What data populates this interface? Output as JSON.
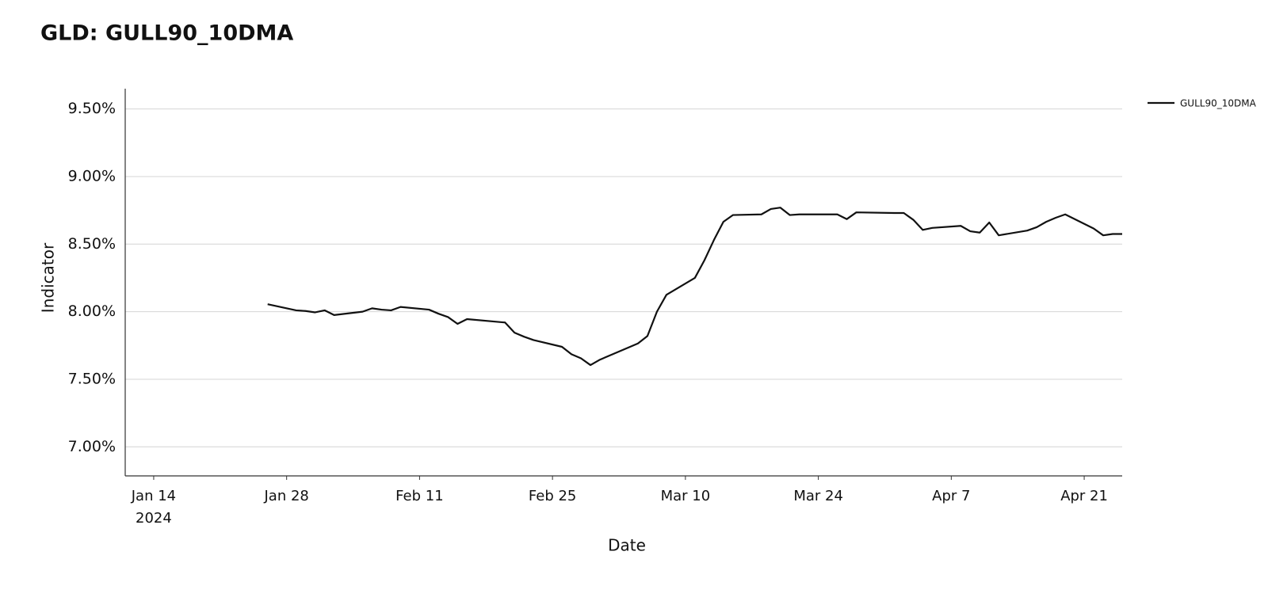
{
  "chart_data": {
    "type": "line",
    "title": "GLD: GULL90_10DMA",
    "x_label": "Date",
    "y_label": "Indicator",
    "x_year_label": "2024",
    "x": [
      "2024-01-26",
      "2024-01-29",
      "2024-01-30",
      "2024-01-31",
      "2024-02-01",
      "2024-02-02",
      "2024-02-05",
      "2024-02-06",
      "2024-02-07",
      "2024-02-08",
      "2024-02-09",
      "2024-02-12",
      "2024-02-13",
      "2024-02-14",
      "2024-02-15",
      "2024-02-16",
      "2024-02-20",
      "2024-02-21",
      "2024-02-22",
      "2024-02-23",
      "2024-02-26",
      "2024-02-27",
      "2024-02-28",
      "2024-02-29",
      "2024-03-01",
      "2024-03-04",
      "2024-03-05",
      "2024-03-06",
      "2024-03-07",
      "2024-03-08",
      "2024-03-11",
      "2024-03-12",
      "2024-03-13",
      "2024-03-14",
      "2024-03-15",
      "2024-03-18",
      "2024-03-19",
      "2024-03-20",
      "2024-03-21",
      "2024-03-22",
      "2024-03-25",
      "2024-03-26",
      "2024-03-27",
      "2024-03-28",
      "2024-04-01",
      "2024-04-02",
      "2024-04-03",
      "2024-04-04",
      "2024-04-05",
      "2024-04-08",
      "2024-04-09",
      "2024-04-10",
      "2024-04-11",
      "2024-04-12",
      "2024-04-15",
      "2024-04-16",
      "2024-04-17",
      "2024-04-18",
      "2024-04-19",
      "2024-04-22",
      "2024-04-23",
      "2024-04-24",
      "2024-04-25"
    ],
    "series": [
      {
        "name": "GULL90_10DMA",
        "color": "#111111",
        "values": [
          8.055,
          8.01,
          8.005,
          7.995,
          8.01,
          7.975,
          8.0,
          8.025,
          8.015,
          8.01,
          8.035,
          8.015,
          7.985,
          7.96,
          7.91,
          7.945,
          7.92,
          7.845,
          7.815,
          7.79,
          7.74,
          7.685,
          7.655,
          7.605,
          7.645,
          7.735,
          7.765,
          7.82,
          8.0,
          8.125,
          8.25,
          8.38,
          8.53,
          8.665,
          8.715,
          8.72,
          8.76,
          8.77,
          8.715,
          8.72,
          8.72,
          8.72,
          8.685,
          8.735,
          8.73,
          8.73,
          8.68,
          8.605,
          8.62,
          8.635,
          8.595,
          8.585,
          8.66,
          8.565,
          8.6,
          8.625,
          8.665,
          8.695,
          8.72,
          8.615,
          8.565,
          8.575,
          8.575
        ]
      }
    ],
    "xlim": [
      "2024-01-11",
      "2024-04-25"
    ],
    "xticks": [
      {
        "value": "2024-01-14",
        "label": "Jan 14"
      },
      {
        "value": "2024-01-28",
        "label": "Jan 28"
      },
      {
        "value": "2024-02-11",
        "label": "Feb 11"
      },
      {
        "value": "2024-02-25",
        "label": "Feb 25"
      },
      {
        "value": "2024-03-10",
        "label": "Mar 10"
      },
      {
        "value": "2024-03-24",
        "label": "Mar 24"
      },
      {
        "value": "2024-04-07",
        "label": "Apr 7"
      },
      {
        "value": "2024-04-21",
        "label": "Apr 21"
      }
    ],
    "ylim": [
      6.785,
      9.65
    ],
    "yticks": [
      {
        "value": 7.0,
        "label": "7.00%"
      },
      {
        "value": 7.5,
        "label": "7.50%"
      },
      {
        "value": 8.0,
        "label": "8.00%"
      },
      {
        "value": 8.5,
        "label": "8.50%"
      },
      {
        "value": 9.0,
        "label": "9.00%"
      },
      {
        "value": 9.5,
        "label": "9.50%"
      }
    ],
    "grid": true,
    "legend": "right"
  }
}
